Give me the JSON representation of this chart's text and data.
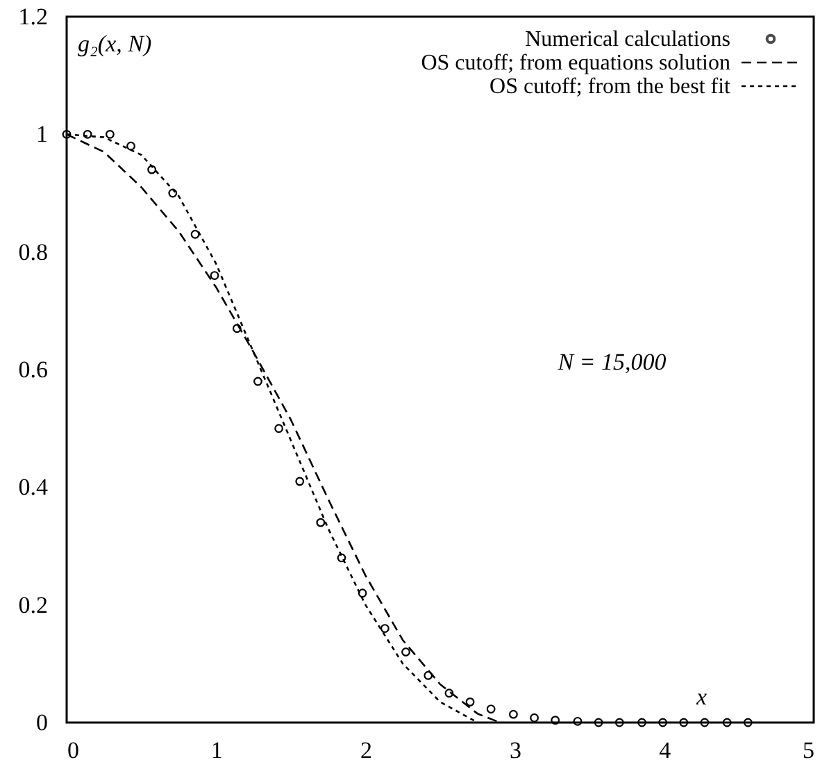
{
  "chart_data": {
    "type": "scatter",
    "xlabel": "x",
    "ylabel": "g₂(x, N)",
    "annotations": [
      "N = 15,000"
    ],
    "xlim": [
      0,
      5
    ],
    "ylim": [
      0,
      1.2
    ],
    "xticks": [
      0,
      1,
      2,
      3,
      4,
      5
    ],
    "yticks": [
      0,
      0.2,
      0.4,
      0.6,
      0.8,
      1,
      1.2
    ],
    "grid": false,
    "legend": "top right",
    "series": [
      {
        "name": "Numerical calculations",
        "color": "#000000",
        "marker": "circle",
        "x": [
          0,
          0.14,
          0.29,
          0.43,
          0.57,
          0.71,
          0.86,
          0.99,
          1.14,
          1.28,
          1.42,
          1.56,
          1.7,
          1.84,
          1.98,
          2.13,
          2.27,
          2.42,
          2.56,
          2.7,
          2.84,
          2.99,
          3.13,
          3.27,
          3.42,
          3.56,
          3.7,
          3.85,
          3.99,
          4.13,
          4.27,
          4.42,
          4.56
        ],
        "values": [
          1,
          1,
          1,
          0.98,
          0.94,
          0.9,
          0.83,
          0.76,
          0.67,
          0.58,
          0.5,
          0.41,
          0.34,
          0.28,
          0.22,
          0.16,
          0.12,
          0.08,
          0.05,
          0.035,
          0.023,
          0.014,
          0.008,
          0.004,
          0.002,
          0,
          0,
          0,
          0,
          0,
          0,
          0,
          0
        ]
      },
      {
        "name": "OS cutoff; from equations solution",
        "type": "line",
        "line_style": "dashed",
        "color": "#000000",
        "x": [
          0,
          0.25,
          0.5,
          0.75,
          1,
          1.25,
          1.5,
          1.75,
          2,
          2.25,
          2.5,
          2.75,
          2.9
        ],
        "values": [
          1,
          0.97,
          0.91,
          0.835,
          0.74,
          0.63,
          0.515,
          0.38,
          0.25,
          0.14,
          0.065,
          0.015,
          0
        ]
      },
      {
        "name": "OS cutoff; from the best fit",
        "type": "line",
        "line_style": "dotted",
        "color": "#000000",
        "x": [
          0,
          0.25,
          0.5,
          0.75,
          1,
          1.25,
          1.5,
          1.75,
          2,
          2.25,
          2.5,
          2.75
        ],
        "values": [
          1,
          0.995,
          0.965,
          0.895,
          0.78,
          0.63,
          0.48,
          0.33,
          0.2,
          0.1,
          0.035,
          0
        ]
      }
    ]
  }
}
